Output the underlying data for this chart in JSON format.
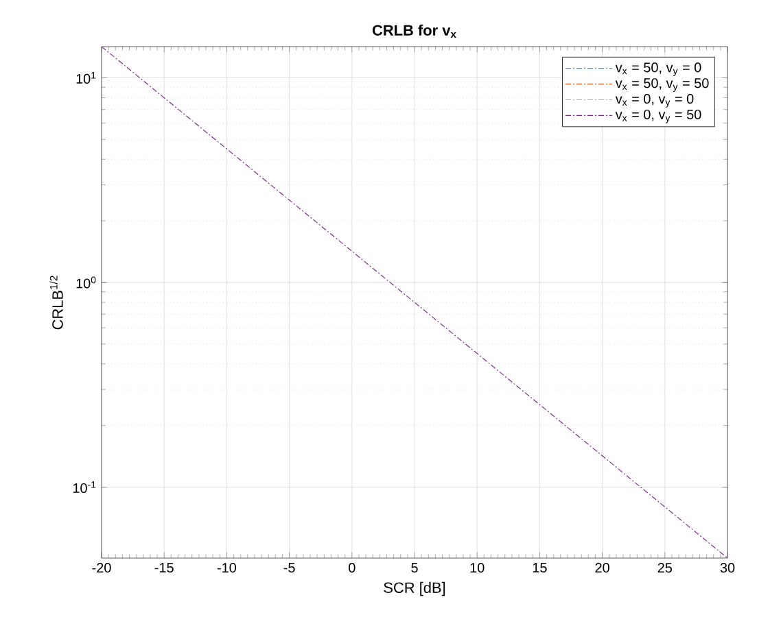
{
  "chart_data": {
    "type": "line",
    "title": "CRLB for v$_{x}$",
    "xlabel": "SCR [dB]",
    "ylabel": "CRLB$^{1/2}$",
    "x": [
      -20,
      30
    ],
    "series": [
      {
        "name": "v$_{x}$ = 50, v$_{y}$ = 0",
        "color": "#0072bd",
        "values": [
          null,
          null
        ]
      },
      {
        "name": "v$_{x}$ = 50, v$_{y}$ = 50",
        "color": "#d95319",
        "values": [
          null,
          null
        ]
      },
      {
        "name": "v$_{x}$ = 0, v$_{y}$ = 0",
        "color": "#edb120",
        "values": [
          null,
          null
        ]
      },
      {
        "name": "v$_{x}$ = 0, v$_{y}$ = 50",
        "color": "#7e2f8e",
        "values": [
          14.2,
          0.045
        ]
      }
    ],
    "xlim": [
      -20,
      30
    ],
    "xticks": [
      -20,
      -15,
      -10,
      -5,
      0,
      5,
      10,
      15,
      20,
      25,
      30
    ],
    "ylim": [
      0.045,
      14.2
    ],
    "yticks": [
      {
        "value": 0.1,
        "label": "10$^{-1}$"
      },
      {
        "value": 1,
        "label": "10$^{0}$"
      },
      {
        "value": 10,
        "label": "10$^{1}$"
      }
    ],
    "log": "y",
    "grid": true,
    "legend": "top right",
    "line_style": "dashed",
    "marker": "none"
  }
}
